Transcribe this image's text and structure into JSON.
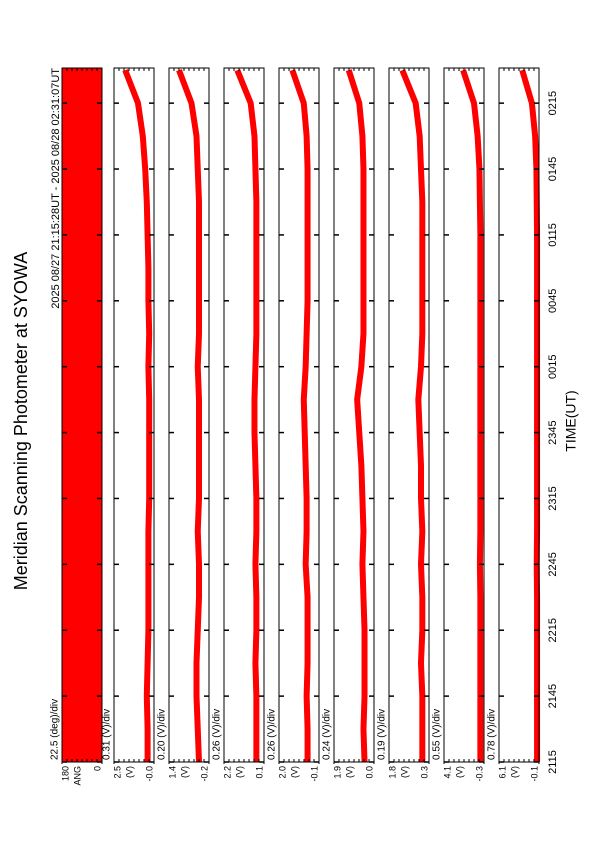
{
  "title": "Meridian Scanning Photometer at SYOWA",
  "subtitle": "2025 08/27 21:15:28UT - 2025 08/28 02:31:07UT",
  "x_label": "TIME(UT)",
  "xlim": [
    0,
    316
  ],
  "xticks": [
    {
      "value": 0,
      "label": "2115"
    },
    {
      "value": 30,
      "label": "2145"
    },
    {
      "value": 60,
      "label": "2215"
    },
    {
      "value": 90,
      "label": "2245"
    },
    {
      "value": 120,
      "label": "2315"
    },
    {
      "value": 150,
      "label": "2345"
    },
    {
      "value": 180,
      "label": "0015"
    },
    {
      "value": 210,
      "label": "0045"
    },
    {
      "value": 240,
      "label": "0115"
    },
    {
      "value": 270,
      "label": "0145"
    },
    {
      "value": 300,
      "label": "0215"
    }
  ],
  "x": [
    0,
    15,
    30,
    45,
    60,
    75,
    90,
    105,
    120,
    135,
    150,
    165,
    180,
    195,
    210,
    225,
    240,
    255,
    270,
    285,
    300,
    315
  ],
  "chart_data": [
    {
      "type": "band",
      "div_label": "22.5 (deg)/div",
      "y_label": "ANG",
      "ylim": [
        0,
        180
      ],
      "yticks": [
        0,
        180
      ],
      "band": [
        0,
        180
      ],
      "color": "#ff0000"
    },
    {
      "type": "line",
      "div_label": "0.31 (V)/div",
      "y_label": "(V)",
      "ylim": [
        0,
        2.5
      ],
      "yticks": [
        {
          "value": 0,
          "label": "-0.0"
        },
        {
          "value": 2.5,
          "label": "2.5"
        }
      ],
      "color": "#ff0000",
      "values": [
        0.4,
        0.4,
        0.45,
        0.4,
        0.35,
        0.35,
        0.35,
        0.35,
        0.3,
        0.3,
        0.3,
        0.3,
        0.35,
        0.3,
        0.35,
        0.35,
        0.4,
        0.45,
        0.55,
        0.7,
        1.0,
        1.8
      ]
    },
    {
      "type": "line",
      "div_label": "0.20 (V)/div",
      "y_label": "(V)",
      "ylim": [
        -0.2,
        1.4
      ],
      "yticks": [
        {
          "value": -0.2,
          "label": "-0.2"
        },
        {
          "value": 1.4,
          "label": "1.4"
        }
      ],
      "color": "#ff0000",
      "values": [
        0.2,
        0.25,
        0.3,
        0.3,
        0.25,
        0.2,
        0.2,
        0.25,
        0.2,
        0.2,
        0.2,
        0.2,
        0.25,
        0.2,
        0.2,
        0.2,
        0.2,
        0.2,
        0.25,
        0.3,
        0.5,
        1.0
      ]
    },
    {
      "type": "line",
      "div_label": "0.26 (V)/div",
      "y_label": "(V)",
      "ylim": [
        0.1,
        2.2
      ],
      "yticks": [
        {
          "value": 0.1,
          "label": "0.1"
        },
        {
          "value": 2.2,
          "label": "2.2"
        }
      ],
      "color": "#ff0000",
      "values": [
        0.5,
        0.5,
        0.5,
        0.55,
        0.5,
        0.5,
        0.55,
        0.5,
        0.5,
        0.55,
        0.6,
        0.6,
        0.55,
        0.5,
        0.5,
        0.5,
        0.5,
        0.5,
        0.55,
        0.6,
        0.8,
        1.5
      ]
    },
    {
      "type": "line",
      "div_label": "0.26 (V)/div",
      "y_label": "(V)",
      "ylim": [
        -0.1,
        2.0
      ],
      "yticks": [
        {
          "value": -0.1,
          "label": "-0.1"
        },
        {
          "value": 2.0,
          "label": "2.0"
        }
      ],
      "color": "#ff0000",
      "values": [
        0.5,
        0.5,
        0.55,
        0.5,
        0.5,
        0.5,
        0.6,
        0.55,
        0.55,
        0.6,
        0.65,
        0.7,
        0.6,
        0.55,
        0.5,
        0.5,
        0.5,
        0.5,
        0.5,
        0.55,
        0.7,
        1.3
      ]
    },
    {
      "type": "line",
      "div_label": "0.24 (V)/div",
      "y_label": "(V)",
      "ylim": [
        0.0,
        1.9
      ],
      "yticks": [
        {
          "value": 0.0,
          "label": "0.0"
        },
        {
          "value": 1.9,
          "label": "1.9"
        }
      ],
      "color": "#ff0000",
      "values": [
        0.45,
        0.5,
        0.45,
        0.45,
        0.45,
        0.5,
        0.55,
        0.5,
        0.55,
        0.6,
        0.7,
        0.8,
        0.6,
        0.5,
        0.5,
        0.5,
        0.5,
        0.5,
        0.5,
        0.55,
        0.7,
        1.2
      ]
    },
    {
      "type": "line",
      "div_label": "0.19 (V)/div",
      "y_label": "(V)",
      "ylim": [
        0.3,
        1.8
      ],
      "yticks": [
        {
          "value": 0.3,
          "label": "0.3"
        },
        {
          "value": 1.8,
          "label": "1.8"
        }
      ],
      "color": "#ff0000",
      "values": [
        0.55,
        0.55,
        0.55,
        0.6,
        0.55,
        0.55,
        0.6,
        0.55,
        0.6,
        0.6,
        0.65,
        0.7,
        0.6,
        0.55,
        0.55,
        0.55,
        0.55,
        0.55,
        0.6,
        0.65,
        0.8,
        1.3
      ]
    },
    {
      "type": "line",
      "div_label": "0.55 (V)/div",
      "y_label": "(V)",
      "ylim": [
        -0.3,
        4.1
      ],
      "yticks": [
        {
          "value": -0.3,
          "label": "-0.3"
        },
        {
          "value": 4.1,
          "label": "4.1"
        }
      ],
      "color": "#ff0000",
      "values": [
        0.1,
        0.1,
        0.1,
        0.1,
        0.1,
        0.1,
        0.15,
        0.1,
        0.1,
        0.1,
        0.1,
        0.1,
        0.1,
        0.1,
        0.1,
        0.1,
        0.1,
        0.15,
        0.2,
        0.4,
        0.8,
        2.0
      ]
    },
    {
      "type": "line",
      "div_label": "0.78 (V)/div",
      "y_label": "(V)",
      "ylim": [
        -0.1,
        6.1
      ],
      "yticks": [
        {
          "value": -0.1,
          "label": "-0.1"
        },
        {
          "value": 6.1,
          "label": "6.1"
        }
      ],
      "color": "#ff0000",
      "values": [
        0.2,
        0.2,
        0.2,
        0.2,
        0.2,
        0.2,
        0.25,
        0.2,
        0.2,
        0.2,
        0.2,
        0.2,
        0.2,
        0.2,
        0.2,
        0.2,
        0.2,
        0.25,
        0.3,
        0.5,
        1.0,
        2.5
      ]
    }
  ]
}
